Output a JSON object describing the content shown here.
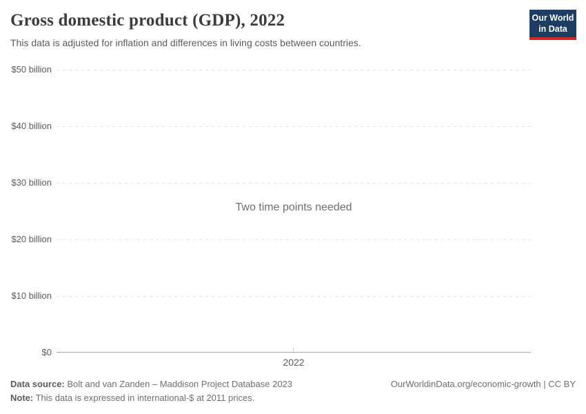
{
  "header": {
    "title": "Gross domestic product (GDP), 2022",
    "subtitle": "This data is adjusted for inflation and differences in living costs between countries."
  },
  "logo": {
    "line1": "Our World",
    "line2": "in Data",
    "bg_color": "#1d3d63",
    "accent_color": "#cf2a30"
  },
  "chart_data": {
    "type": "line",
    "title": "Gross domestic product (GDP), 2022",
    "empty": true,
    "empty_message": "Two time points needed",
    "series": [],
    "x_tick_labels": [
      "2022"
    ],
    "y_tick_labels": [
      "$0",
      "$10 billion",
      "$20 billion",
      "$30 billion",
      "$40 billion",
      "$50 billion"
    ],
    "ylim_dollars": [
      0,
      50000000000
    ],
    "y_tick_step_dollars": 10000000000,
    "grid": "horizontal dashed gridlines",
    "legend": "none",
    "colors": {
      "gridline": "#e0e0e0",
      "axis_line": "#a6a6a6",
      "tick_text": "#5b5b5b",
      "message_text": "#6e6e6e"
    }
  },
  "footer": {
    "data_source_label": "Data source:",
    "data_source_value": " Bolt and van Zanden – Maddison Project Database 2023",
    "note_label": "Note:",
    "note_value": " This data is expressed in international-$ at 2011 prices.",
    "link": "OurWorldinData.org/economic-growth | CC BY"
  }
}
